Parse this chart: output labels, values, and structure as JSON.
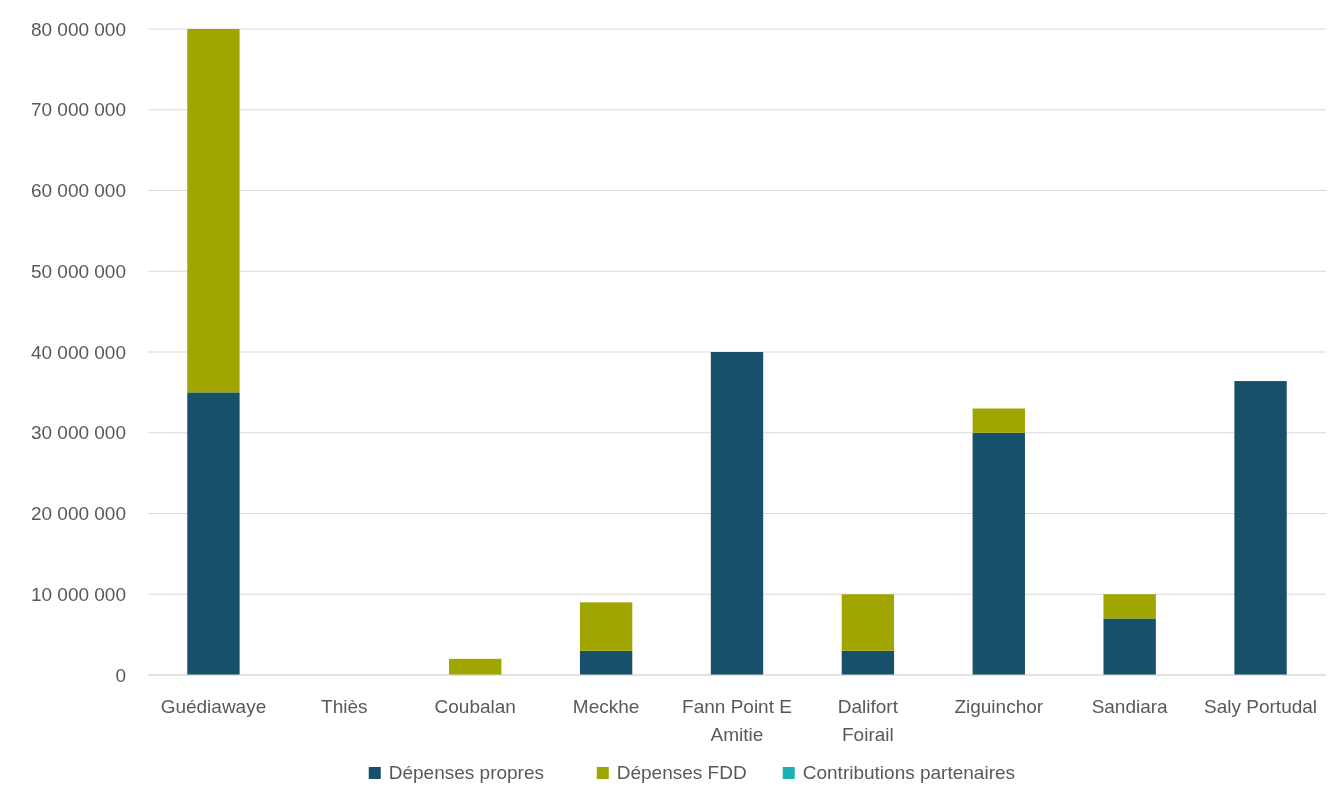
{
  "chart_data": {
    "type": "bar",
    "stacked": true,
    "categories": [
      "Guédiawaye",
      "Thiès",
      "Coubalan",
      "Meckhe",
      "Fann Point E Amitie",
      "Dalifort Foirail",
      "Ziguinchor",
      "Sandiara",
      "Saly Portudal"
    ],
    "series": [
      {
        "name": "Dépenses propres",
        "color": "#17506b",
        "values": [
          35000000,
          0,
          0,
          3000000,
          40000000,
          3000000,
          30000000,
          7000000,
          36400000
        ]
      },
      {
        "name": "Dépenses FDD",
        "color": "#a0a500",
        "values": [
          45000000,
          0,
          2000000,
          6000000,
          0,
          7000000,
          3000000,
          3000000,
          0
        ]
      },
      {
        "name": "Contributions partenaires",
        "color": "#1fb0b5",
        "values": [
          0,
          0,
          0,
          0,
          0,
          0,
          0,
          0,
          0
        ]
      }
    ],
    "ylim": [
      0,
      80000000
    ],
    "yticks": [
      {
        "value": 0,
        "label": "0"
      },
      {
        "value": 10000000,
        "label": "10 000 000"
      },
      {
        "value": 20000000,
        "label": "20 000 000"
      },
      {
        "value": 30000000,
        "label": "30 000 000"
      },
      {
        "value": 40000000,
        "label": "40 000 000"
      },
      {
        "value": 50000000,
        "label": "50 000 000"
      },
      {
        "value": 60000000,
        "label": "60 000 000"
      },
      {
        "value": 70000000,
        "label": "70 000 000"
      },
      {
        "value": 80000000,
        "label": "80 000 000"
      }
    ],
    "grid": "y",
    "legend": "bottom"
  }
}
